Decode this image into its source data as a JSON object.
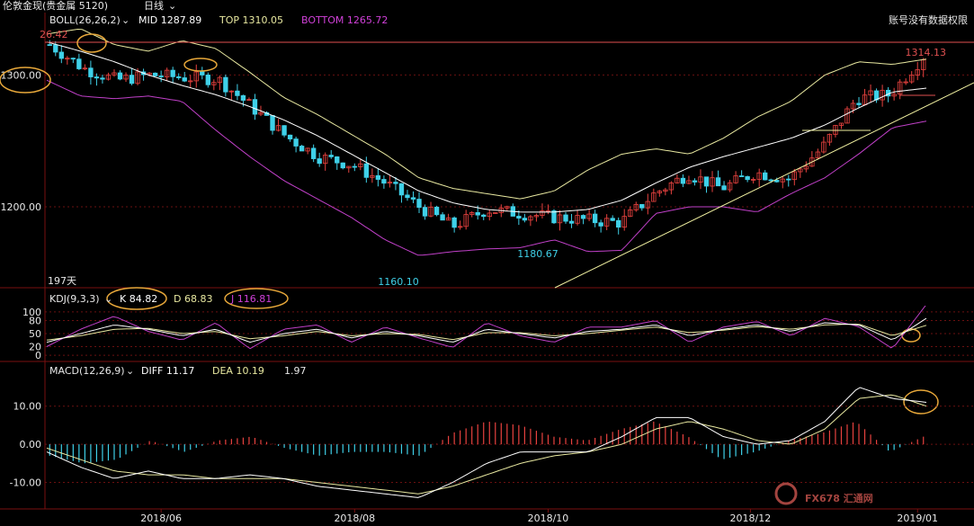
{
  "header": {
    "title": "伦敦金现(贵金属 5120)",
    "period": "日线"
  },
  "boll": {
    "label": "BOLL(26,26,2)",
    "mid": "MID 1287.89",
    "top": "TOP 1310.05",
    "bottom": "BOTTOM 1265.72"
  },
  "notice": "账号没有数据权限",
  "price_labels": {
    "high_left": "26.42",
    "last_high": "1314.13",
    "low_1": "1160.10",
    "low_2": "1180.67",
    "count": "197天"
  },
  "kdj": {
    "label": "KDJ(9,3,3)",
    "k": "K 84.82",
    "d": "D 68.83",
    "j": "J 116.81"
  },
  "macd": {
    "label": "MACD(12,26,9)",
    "diff": "DIFF 11.17",
    "dea": "DEA 10.19",
    "macd": "1.97"
  },
  "watermark": "FX678 汇通网",
  "colors": {
    "up": "#e8423f",
    "down": "#3fd0e8",
    "boll_band": "#e8e8a0",
    "mid": "#ffffff",
    "bottom": "#c040c8",
    "annotation": "#e8a83a",
    "trendline": "#f0f0a0"
  },
  "chart_data": [
    {
      "type": "line",
      "title": "伦敦金现(贵金属 5120)",
      "xlabel": "",
      "ylabel": "",
      "x_ticks": [
        "2018/06",
        "2018/08",
        "2018/10",
        "2018/12",
        "2019/01"
      ],
      "y_ticks": [
        1200.0,
        1300.0
      ],
      "ylim": [
        1140,
        1335
      ],
      "series": [
        {
          "name": "MID",
          "values": [
            1325,
            1318,
            1310,
            1300,
            1292,
            1285,
            1276,
            1266,
            1254,
            1240,
            1226,
            1212,
            1203,
            1198,
            1196,
            1196,
            1198,
            1205,
            1218,
            1230,
            1238,
            1245,
            1252,
            1262,
            1275,
            1287,
            1290
          ]
        },
        {
          "name": "TOP",
          "values": [
            1331,
            1335,
            1323,
            1318,
            1326,
            1320,
            1302,
            1283,
            1270,
            1255,
            1240,
            1222,
            1214,
            1210,
            1206,
            1212,
            1228,
            1240,
            1244,
            1240,
            1252,
            1268,
            1280,
            1300,
            1310,
            1308,
            1312
          ]
        },
        {
          "name": "BOTTOM",
          "values": [
            1296,
            1284,
            1282,
            1284,
            1280,
            1258,
            1238,
            1220,
            1206,
            1192,
            1175,
            1163,
            1166,
            1168,
            1169,
            1175,
            1166,
            1167,
            1195,
            1200,
            1200,
            1196,
            1210,
            1222,
            1240,
            1260,
            1265
          ]
        },
        {
          "name": "Close",
          "values": [
            1323,
            1305,
            1296,
            1300,
            1298,
            1297,
            1276,
            1254,
            1238,
            1232,
            1218,
            1200,
            1185,
            1198,
            1195,
            1192,
            1190,
            1188,
            1210,
            1225,
            1214,
            1226,
            1221,
            1245,
            1282,
            1285,
            1314
          ]
        }
      ],
      "annotations": [
        "1314.13",
        "1160.10",
        "1180.67",
        "26.42",
        "197天"
      ]
    },
    {
      "type": "line",
      "title": "KDJ(9,3,3)",
      "y_ticks": [
        0,
        20,
        50,
        80,
        100
      ],
      "ylim": [
        -10,
        110
      ],
      "series": [
        {
          "name": "K",
          "values": [
            30,
            50,
            70,
            60,
            45,
            60,
            30,
            50,
            60,
            40,
            55,
            45,
            30,
            60,
            50,
            40,
            55,
            60,
            70,
            45,
            60,
            70,
            55,
            75,
            70,
            35,
            85
          ]
        },
        {
          "name": "D",
          "values": [
            35,
            45,
            60,
            62,
            50,
            55,
            38,
            45,
            55,
            45,
            50,
            48,
            36,
            52,
            52,
            45,
            50,
            58,
            65,
            52,
            58,
            66,
            60,
            70,
            72,
            45,
            69
          ]
        },
        {
          "name": "J",
          "values": [
            20,
            60,
            90,
            55,
            35,
            75,
            15,
            60,
            70,
            30,
            65,
            40,
            18,
            75,
            45,
            30,
            65,
            65,
            80,
            30,
            65,
            78,
            45,
            85,
            66,
            15,
            117
          ]
        }
      ]
    },
    {
      "type": "bar",
      "title": "MACD(12,26,9)",
      "y_ticks": [
        -10.0,
        0.0,
        10.0
      ],
      "ylim": [
        -16,
        17
      ],
      "series": [
        {
          "name": "DIFF",
          "values": [
            -2,
            -6,
            -9,
            -7,
            -9,
            -9,
            -8,
            -9,
            -11,
            -12,
            -13,
            -14,
            -10,
            -5,
            -2,
            -2,
            -2,
            2,
            7,
            7,
            2,
            0,
            1,
            6,
            15,
            12,
            11
          ]
        },
        {
          "name": "DEA",
          "values": [
            -1,
            -4,
            -7,
            -8,
            -8,
            -9,
            -9,
            -9,
            -10,
            -11,
            -12,
            -13,
            -11,
            -8,
            -5,
            -3,
            -2,
            0,
            4,
            6,
            4,
            1,
            0,
            4,
            12,
            13,
            10
          ]
        },
        {
          "name": "MACD",
          "values": [
            -3,
            -5,
            -4,
            1,
            -2,
            1,
            2,
            -1,
            -3,
            -2,
            -2,
            -3,
            3,
            6,
            5,
            2,
            1,
            4,
            6,
            2,
            -4,
            -2,
            1,
            3,
            6,
            -2,
            2
          ]
        }
      ]
    }
  ]
}
